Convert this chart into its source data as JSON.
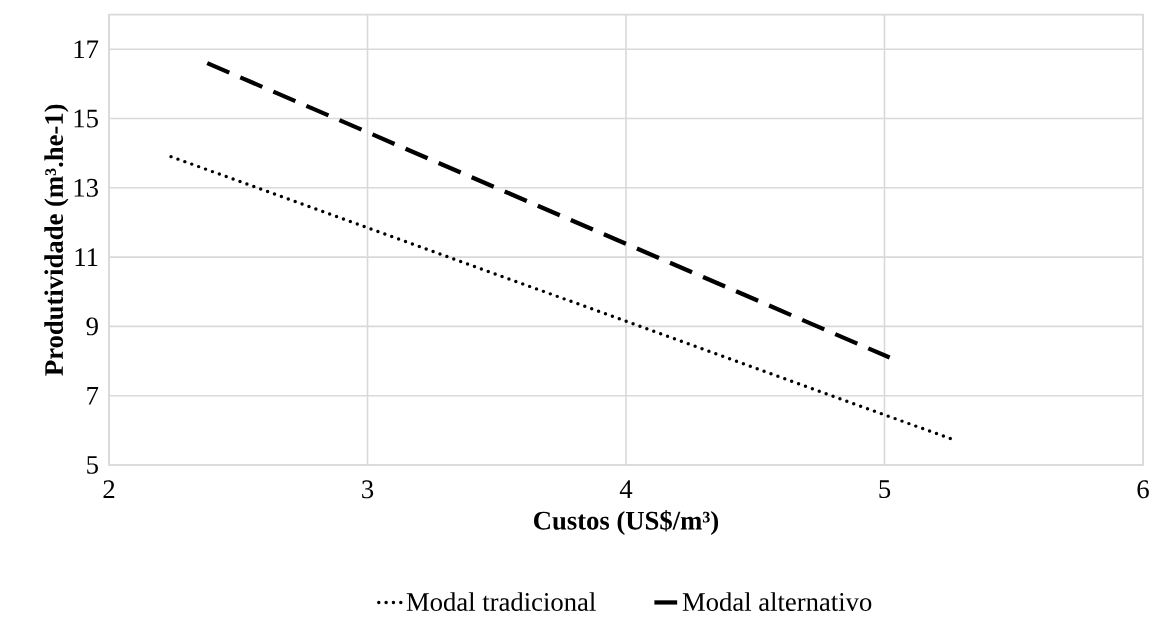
{
  "chart_data": {
    "type": "line",
    "xlabel": "Custos (US$/m³)",
    "ylabel": "Produtividade (m³.he-1)",
    "xlim": [
      2,
      6
    ],
    "xticks": [
      2,
      3,
      4,
      5,
      6
    ],
    "ylim": [
      5,
      18
    ],
    "yticks": [
      5,
      7,
      9,
      11,
      13,
      15,
      17
    ],
    "grid": true,
    "legend": "bottom",
    "marker": "none",
    "series": [
      {
        "name": "Modal tradicional",
        "color": "#000000",
        "line_style": "dotted",
        "x": [
          2.24,
          5.27
        ],
        "values": [
          13.9,
          5.72
        ]
      },
      {
        "name": "Modal alternativo",
        "color": "#000000",
        "line_style": "dashed",
        "x": [
          2.38,
          5.02
        ],
        "values": [
          16.6,
          8.1
        ]
      }
    ]
  }
}
